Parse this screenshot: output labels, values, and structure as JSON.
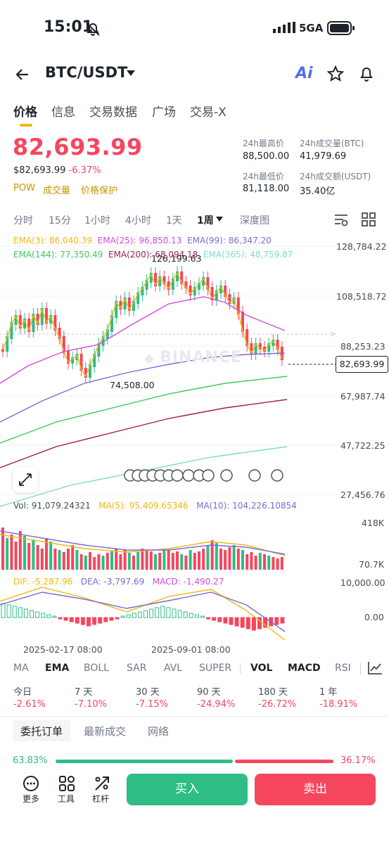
{
  "status_bar": {
    "time": "15:01",
    "network": "5GA"
  },
  "header": {
    "pair": "BTC/USDT",
    "ai_label": "Ai"
  },
  "tabs": [
    "价格",
    "信息",
    "交易数据",
    "广场",
    "交易-X"
  ],
  "price": {
    "last": "82,693.99",
    "usd": "$82,693.99",
    "change": "-6.37%",
    "tags": [
      "POW",
      "成交量",
      "价格保护"
    ]
  },
  "stats": {
    "high_label": "24h最高价",
    "high_value": "88,500.00",
    "vol_btc_label": "24h成交量(BTC)",
    "vol_btc_value": "41,979.69",
    "low_label": "24h最低价",
    "low_value": "81,118.00",
    "vol_usdt_label": "24h成交额(USDT)",
    "vol_usdt_value": "35.40亿"
  },
  "intervals": [
    "分时",
    "15分",
    "1小时",
    "4小时",
    "1天",
    "1周",
    "深度图"
  ],
  "active_interval": "1周",
  "ema_legend": {
    "ema3": "EMA(3): 86,040.39",
    "ema25": "EMA(25): 96,850.13",
    "ema99": "EMA(99): 86,347.20",
    "ema144": "EMA(144): 77,350.49",
    "ema200": "EMA(200): 68,094.18",
    "ema365": "EMA(365): 48,759.87"
  },
  "price_axis": [
    "128,784.22",
    "108,518.72",
    "88,253.23",
    "67,987.74",
    "47,722.25",
    "27,456.76"
  ],
  "current_price_label": "82,693.99",
  "annotations": {
    "high": "126,199.63",
    "low": "74,508.00"
  },
  "watermark": "BINANCE",
  "volume": {
    "vol_label": "Vol: 91,079.24321",
    "ma5": "MA(5): 95,409.65346",
    "ma10": "MA(10): 104,226.10854",
    "axis_top": "418K",
    "axis_bottom": "70.7K"
  },
  "macd": {
    "dif": "DIF: -5,287.96",
    "dea": "DEA: -3,797.69",
    "macd": "MACD: -1,490.27",
    "axis_top": "10,000.00",
    "axis_mid": "0.00"
  },
  "time_axis": [
    "2025-02-17 08:00",
    "2025-09-01 08:00"
  ],
  "indicators": [
    "MA",
    "EMA",
    "BOLL",
    "SAR",
    "AVL",
    "SUPER",
    "VOL",
    "MACD",
    "RSI"
  ],
  "periods": [
    {
      "label": "今日",
      "value": "-2.61%"
    },
    {
      "label": "7 天",
      "value": "-7.10%"
    },
    {
      "label": "30 天",
      "value": "-7.15%"
    },
    {
      "label": "90 天",
      "value": "-24.94%"
    },
    {
      "label": "180 天",
      "value": "-26.72%"
    },
    {
      "label": "1 年",
      "value": "-18.91%"
    }
  ],
  "order_tabs": [
    "委托订单",
    "最新成交",
    "网络"
  ],
  "ratio": {
    "buy": "63.83%",
    "sell": "36.17%",
    "buy_fraction": 0.6383
  },
  "bottom_bar": {
    "more": "更多",
    "tools": "工具",
    "leverage": "杠杆",
    "buy": "买入",
    "sell": "卖出"
  },
  "colors": {
    "up": "#2ebd85",
    "down": "#f6465d",
    "accent": "#f0b90b"
  }
}
